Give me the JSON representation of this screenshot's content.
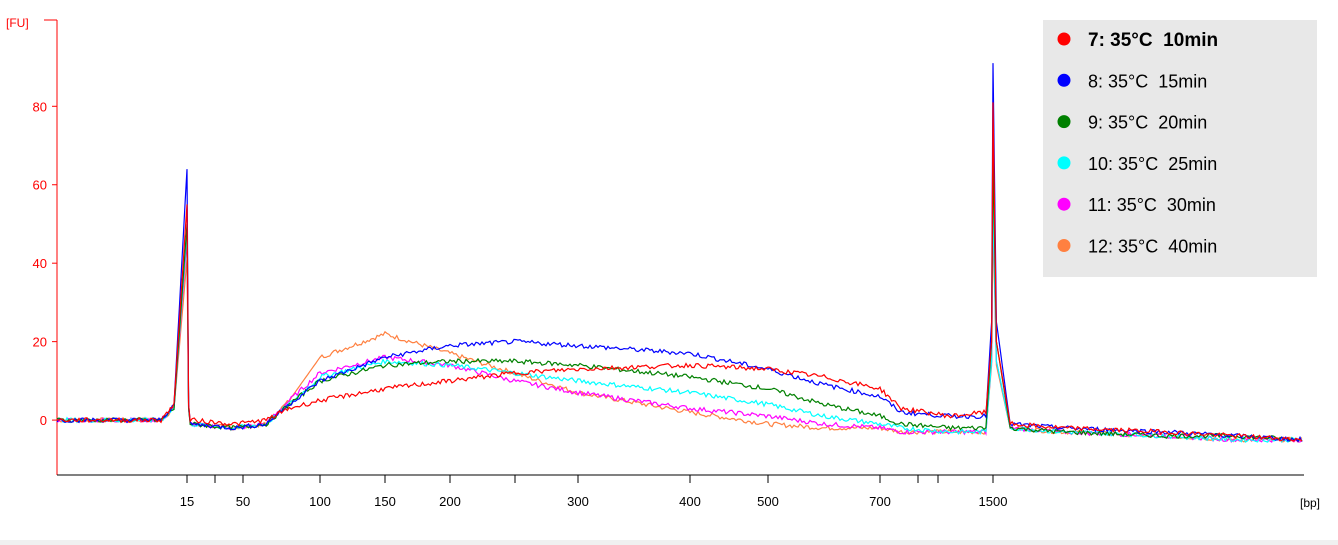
{
  "colors": {
    "background": "#f0f0f0",
    "plot_background": "#ffffff",
    "axis": "#ff0000",
    "legend_background": "#e8e8e8"
  },
  "chart_data": {
    "type": "line",
    "title": "",
    "xlabel": "[bp]",
    "ylabel": "[FU]",
    "ylim": [
      -14,
      102
    ],
    "yticks": [
      0,
      20,
      40,
      60,
      80
    ],
    "xticks": [
      {
        "label": "15",
        "value": 15
      },
      {
        "label": "50",
        "value": 50
      },
      {
        "label": "100",
        "value": 100
      },
      {
        "label": "150",
        "value": 150
      },
      {
        "label": "200",
        "value": 200
      },
      {
        "label": "300",
        "value": 300
      },
      {
        "label": "400",
        "value": 400
      },
      {
        "label": "500",
        "value": 500
      },
      {
        "label": "700",
        "value": 700
      },
      {
        "label": "1500",
        "value": 1500
      }
    ],
    "x_scale": "non-linear (electropherogram bp axis)",
    "grid": false,
    "legend_position": "top-right",
    "legend_selected": "7: 35°C  10min",
    "series": [
      {
        "name": "7: 35°C  10min",
        "color": "#ff0000",
        "points": [
          [
            5,
            0
          ],
          [
            13,
            0
          ],
          [
            14,
            4
          ],
          [
            15,
            55
          ],
          [
            16,
            4
          ],
          [
            17,
            0
          ],
          [
            45,
            -1
          ],
          [
            65,
            0
          ],
          [
            80,
            3
          ],
          [
            100,
            5
          ],
          [
            150,
            8
          ],
          [
            200,
            10
          ],
          [
            250,
            12
          ],
          [
            300,
            13
          ],
          [
            400,
            14
          ],
          [
            500,
            13
          ],
          [
            600,
            11
          ],
          [
            700,
            8
          ],
          [
            850,
            3
          ],
          [
            1200,
            1
          ],
          [
            1450,
            2
          ],
          [
            1490,
            20
          ],
          [
            1500,
            81
          ],
          [
            1510,
            20
          ],
          [
            1550,
            -1
          ],
          [
            1700,
            -2
          ],
          [
            2000,
            -3
          ],
          [
            2200,
            -4
          ],
          [
            2400,
            -5
          ]
        ]
      },
      {
        "name": "8: 35°C  15min",
        "color": "#0000ff",
        "points": [
          [
            5,
            0
          ],
          [
            13,
            0
          ],
          [
            14,
            4
          ],
          [
            15,
            64
          ],
          [
            16,
            4
          ],
          [
            17,
            -1
          ],
          [
            45,
            -2
          ],
          [
            65,
            -1
          ],
          [
            80,
            4
          ],
          [
            100,
            10
          ],
          [
            150,
            16
          ],
          [
            200,
            19
          ],
          [
            250,
            20
          ],
          [
            300,
            19
          ],
          [
            400,
            17
          ],
          [
            500,
            13
          ],
          [
            600,
            9
          ],
          [
            700,
            6
          ],
          [
            850,
            2
          ],
          [
            1200,
            1
          ],
          [
            1450,
            1
          ],
          [
            1490,
            25
          ],
          [
            1500,
            91
          ],
          [
            1510,
            25
          ],
          [
            1550,
            -1
          ],
          [
            1700,
            -2
          ],
          [
            2000,
            -3
          ],
          [
            2200,
            -4
          ],
          [
            2400,
            -5
          ]
        ]
      },
      {
        "name": "9: 35°C  20min",
        "color": "#008000",
        "points": [
          [
            5,
            0
          ],
          [
            13,
            0
          ],
          [
            14,
            3
          ],
          [
            15,
            50
          ],
          [
            16,
            3
          ],
          [
            17,
            -1
          ],
          [
            45,
            -2
          ],
          [
            65,
            -1
          ],
          [
            80,
            4
          ],
          [
            100,
            10
          ],
          [
            150,
            14
          ],
          [
            200,
            15
          ],
          [
            250,
            15
          ],
          [
            300,
            14
          ],
          [
            400,
            11
          ],
          [
            500,
            8
          ],
          [
            600,
            4
          ],
          [
            700,
            1
          ],
          [
            850,
            -1
          ],
          [
            1200,
            -2
          ],
          [
            1450,
            -2
          ],
          [
            1490,
            20
          ],
          [
            1500,
            67
          ],
          [
            1510,
            20
          ],
          [
            1550,
            -2
          ],
          [
            1700,
            -3
          ],
          [
            2000,
            -4
          ],
          [
            2200,
            -4
          ],
          [
            2400,
            -5
          ]
        ]
      },
      {
        "name": "10: 35°C  25min",
        "color": "#00ffff",
        "points": [
          [
            5,
            0
          ],
          [
            13,
            0
          ],
          [
            14,
            3
          ],
          [
            15,
            48
          ],
          [
            16,
            3
          ],
          [
            17,
            -1
          ],
          [
            45,
            -2
          ],
          [
            65,
            -1
          ],
          [
            80,
            4
          ],
          [
            100,
            11
          ],
          [
            150,
            15
          ],
          [
            200,
            14
          ],
          [
            250,
            12
          ],
          [
            300,
            10
          ],
          [
            400,
            7
          ],
          [
            500,
            4
          ],
          [
            600,
            1
          ],
          [
            700,
            -1
          ],
          [
            850,
            -2
          ],
          [
            1200,
            -3
          ],
          [
            1450,
            -3
          ],
          [
            1490,
            15
          ],
          [
            1500,
            55
          ],
          [
            1510,
            15
          ],
          [
            1550,
            -2
          ],
          [
            1700,
            -3
          ],
          [
            2000,
            -4
          ],
          [
            2200,
            -5
          ],
          [
            2400,
            -5
          ]
        ]
      },
      {
        "name": "11: 35°C  30min",
        "color": "#ff00ff",
        "points": [
          [
            5,
            0
          ],
          [
            13,
            0
          ],
          [
            14,
            3
          ],
          [
            15,
            46
          ],
          [
            16,
            3
          ],
          [
            17,
            -1
          ],
          [
            45,
            -2
          ],
          [
            65,
            -1
          ],
          [
            80,
            5
          ],
          [
            100,
            12
          ],
          [
            150,
            16
          ],
          [
            200,
            14
          ],
          [
            250,
            10
          ],
          [
            300,
            7
          ],
          [
            400,
            3
          ],
          [
            500,
            1
          ],
          [
            600,
            -1
          ],
          [
            700,
            -2
          ],
          [
            850,
            -3
          ],
          [
            1200,
            -3
          ],
          [
            1450,
            -3
          ],
          [
            1490,
            15
          ],
          [
            1500,
            54
          ],
          [
            1510,
            15
          ],
          [
            1550,
            -2
          ],
          [
            1700,
            -3
          ],
          [
            2000,
            -4
          ],
          [
            2200,
            -5
          ],
          [
            2400,
            -5
          ]
        ]
      },
      {
        "name": "12: 35°C  40min",
        "color": "#ff8040",
        "points": [
          [
            5,
            0
          ],
          [
            13,
            0
          ],
          [
            14,
            3
          ],
          [
            15,
            41
          ],
          [
            16,
            3
          ],
          [
            17,
            -1
          ],
          [
            45,
            -2
          ],
          [
            65,
            -1
          ],
          [
            80,
            5
          ],
          [
            100,
            16
          ],
          [
            150,
            22
          ],
          [
            200,
            17
          ],
          [
            250,
            12
          ],
          [
            300,
            7
          ],
          [
            400,
            2
          ],
          [
            500,
            -1
          ],
          [
            600,
            -2
          ],
          [
            700,
            -2
          ],
          [
            850,
            -3
          ],
          [
            1200,
            -3
          ],
          [
            1450,
            -3
          ],
          [
            1490,
            14
          ],
          [
            1500,
            50
          ],
          [
            1510,
            14
          ],
          [
            1550,
            -2
          ],
          [
            1700,
            -3
          ],
          [
            2000,
            -4
          ],
          [
            2200,
            -5
          ],
          [
            2400,
            -5
          ]
        ]
      }
    ]
  }
}
